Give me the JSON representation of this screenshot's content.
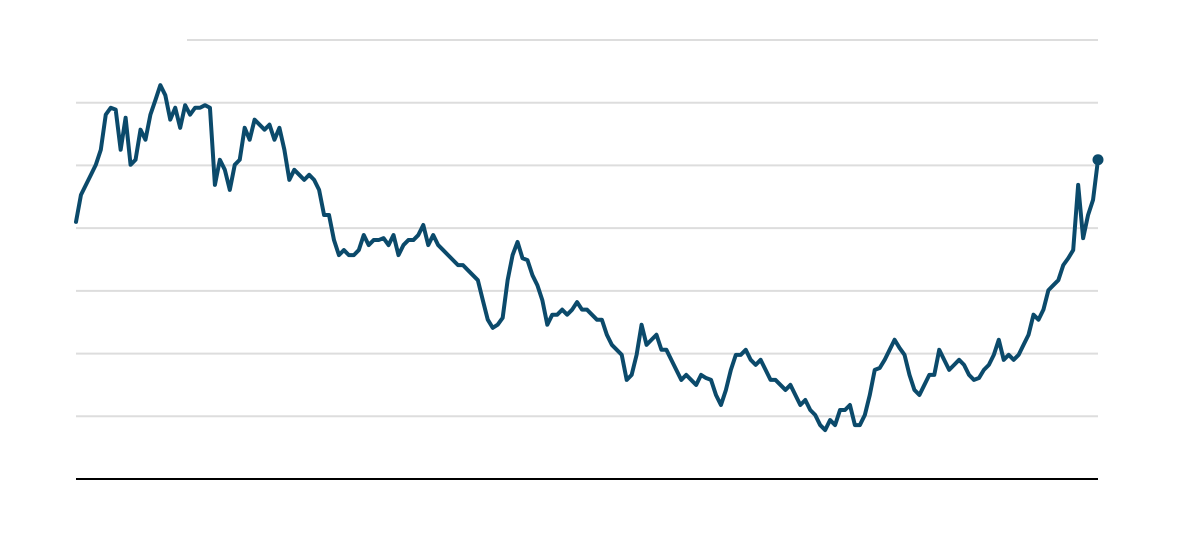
{
  "chart_data": {
    "type": "line",
    "color": "#0b4a6b",
    "grid": true,
    "ylim": [
      0,
      7
    ],
    "yticks": [
      1,
      2,
      3,
      4,
      5,
      6,
      7
    ],
    "values": [
      4.1,
      4.53,
      4.69,
      4.85,
      5.01,
      5.25,
      5.81,
      5.92,
      5.89,
      5.25,
      5.76,
      5.01,
      5.09,
      5.57,
      5.41,
      5.81,
      6.04,
      6.28,
      6.12,
      5.73,
      5.92,
      5.6,
      5.96,
      5.81,
      5.92,
      5.92,
      5.96,
      5.92,
      4.69,
      5.09,
      4.93,
      4.61,
      5.01,
      5.09,
      5.6,
      5.41,
      5.73,
      5.65,
      5.57,
      5.65,
      5.41,
      5.6,
      5.25,
      4.77,
      4.93,
      4.85,
      4.77,
      4.85,
      4.77,
      4.61,
      4.21,
      4.21,
      3.81,
      3.57,
      3.65,
      3.57,
      3.57,
      3.65,
      3.89,
      3.73,
      3.81,
      3.81,
      3.84,
      3.73,
      3.89,
      3.57,
      3.73,
      3.81,
      3.81,
      3.89,
      4.05,
      3.73,
      3.89,
      3.73,
      3.65,
      3.57,
      3.49,
      3.41,
      3.41,
      3.33,
      3.25,
      3.17,
      2.85,
      2.54,
      2.41,
      2.46,
      2.57,
      3.17,
      3.57,
      3.78,
      3.52,
      3.49,
      3.25,
      3.09,
      2.85,
      2.46,
      2.62,
      2.62,
      2.7,
      2.62,
      2.7,
      2.82,
      2.7,
      2.7,
      2.62,
      2.54,
      2.54,
      2.3,
      2.14,
      2.06,
      1.98,
      1.58,
      1.66,
      1.98,
      2.46,
      2.14,
      2.22,
      2.3,
      2.06,
      2.06,
      1.9,
      1.74,
      1.58,
      1.66,
      1.58,
      1.5,
      1.66,
      1.61,
      1.58,
      1.34,
      1.18,
      1.42,
      1.74,
      1.98,
      1.98,
      2.06,
      1.9,
      1.82,
      1.9,
      1.74,
      1.58,
      1.58,
      1.5,
      1.42,
      1.5,
      1.34,
      1.18,
      1.26,
      1.1,
      1.02,
      0.86,
      0.78,
      0.94,
      0.86,
      1.1,
      1.1,
      1.18,
      0.86,
      0.86,
      1.02,
      1.34,
      1.74,
      1.77,
      1.9,
      2.06,
      2.22,
      2.09,
      1.98,
      1.66,
      1.42,
      1.34,
      1.5,
      1.66,
      1.66,
      2.06,
      1.9,
      1.74,
      1.82,
      1.9,
      1.82,
      1.66,
      1.58,
      1.61,
      1.74,
      1.82,
      1.98,
      2.22,
      1.9,
      1.98,
      1.9,
      1.98,
      2.14,
      2.3,
      2.62,
      2.54,
      2.7,
      3.01,
      3.09,
      3.17,
      3.41,
      3.52,
      3.65,
      4.69,
      3.84,
      4.21,
      4.45,
      5.09
    ]
  }
}
